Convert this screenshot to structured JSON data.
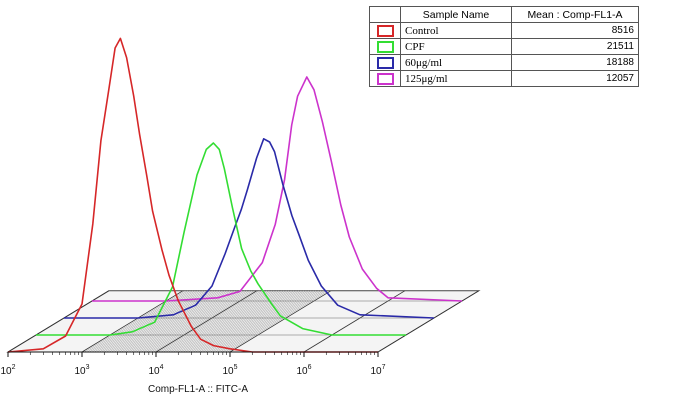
{
  "chart_data": {
    "type": "line",
    "variant": "3d-offset-histogram-overlay",
    "xlabel": "Comp-FL1-A :: FITC-A",
    "x_scale": "log",
    "xlim": [
      100,
      10000000
    ],
    "x_ticks": [
      {
        "value": 100,
        "base": "10",
        "exp": "2"
      },
      {
        "value": 1000,
        "base": "10",
        "exp": "3"
      },
      {
        "value": 10000,
        "base": "10",
        "exp": "4"
      },
      {
        "value": 100000,
        "base": "10",
        "exp": "5"
      },
      {
        "value": 1000000,
        "base": "10",
        "exp": "6"
      },
      {
        "value": 10000000,
        "base": "10",
        "exp": "7"
      }
    ],
    "legend_table": {
      "placement": "top-right",
      "headers": [
        "",
        "Sample Name",
        "Mean : Comp-FL1-A"
      ],
      "rows": [
        {
          "name": "Control",
          "mean": "8516",
          "color": "#d62728"
        },
        {
          "name": "CPF",
          "mean": "21511",
          "color": "#33dd33"
        },
        {
          "name": "60μg/ml",
          "mean": "18188",
          "color": "#2a2aa8"
        },
        {
          "name": "125μg/ml",
          "mean": "12057",
          "color": "#cc33cc"
        }
      ]
    },
    "series": [
      {
        "name": "Control",
        "color": "#d62728",
        "x": [
          100,
          300,
          600,
          1000,
          1400,
          1800,
          2300,
          2800,
          3300,
          4000,
          5000,
          6000,
          7500,
          9000,
          12000,
          15000,
          20000,
          30000,
          40000,
          60000,
          100000,
          200000,
          1000000,
          10000000
        ],
        "y": [
          0,
          1,
          5,
          15,
          40,
          66,
          82,
          95,
          98,
          92,
          80,
          68,
          55,
          44,
          32,
          24,
          16,
          8,
          4,
          2,
          1,
          0,
          0,
          0
        ]
      },
      {
        "name": "CPF",
        "color": "#33dd33",
        "x": [
          100,
          1000,
          2000,
          4000,
          7000,
          10000,
          15000,
          20000,
          25000,
          30000,
          35000,
          45000,
          60000,
          80000,
          100000,
          150000,
          200000,
          400000,
          1000000,
          10000000
        ],
        "y": [
          0,
          0,
          1,
          4,
          15,
          32,
          50,
          58,
          60,
          58,
          52,
          40,
          27,
          20,
          16,
          10,
          6,
          2,
          0,
          0
        ]
      },
      {
        "name": "60μg/ml",
        "color": "#2a2aa8",
        "x": [
          100,
          1000,
          3000,
          6000,
          10000,
          15000,
          20000,
          25000,
          30000,
          40000,
          50000,
          60000,
          70000,
          90000,
          120000,
          150000,
          200000,
          300000,
          500000,
          1000000,
          10000000
        ],
        "y": [
          0,
          0,
          1,
          4,
          10,
          20,
          28,
          34,
          40,
          50,
          56,
          55,
          52,
          42,
          32,
          26,
          18,
          10,
          4,
          1,
          0
        ]
      },
      {
        "name": "125μg/ml",
        "color": "#cc33cc",
        "x": [
          100,
          1000,
          5000,
          10000,
          20000,
          30000,
          40000,
          50000,
          60000,
          80000,
          100000,
          130000,
          170000,
          230000,
          300000,
          450000,
          700000,
          1000000,
          10000000
        ],
        "y": [
          0,
          0,
          1,
          3,
          12,
          24,
          38,
          55,
          64,
          70,
          66,
          56,
          44,
          30,
          20,
          10,
          4,
          1,
          0
        ]
      }
    ]
  }
}
